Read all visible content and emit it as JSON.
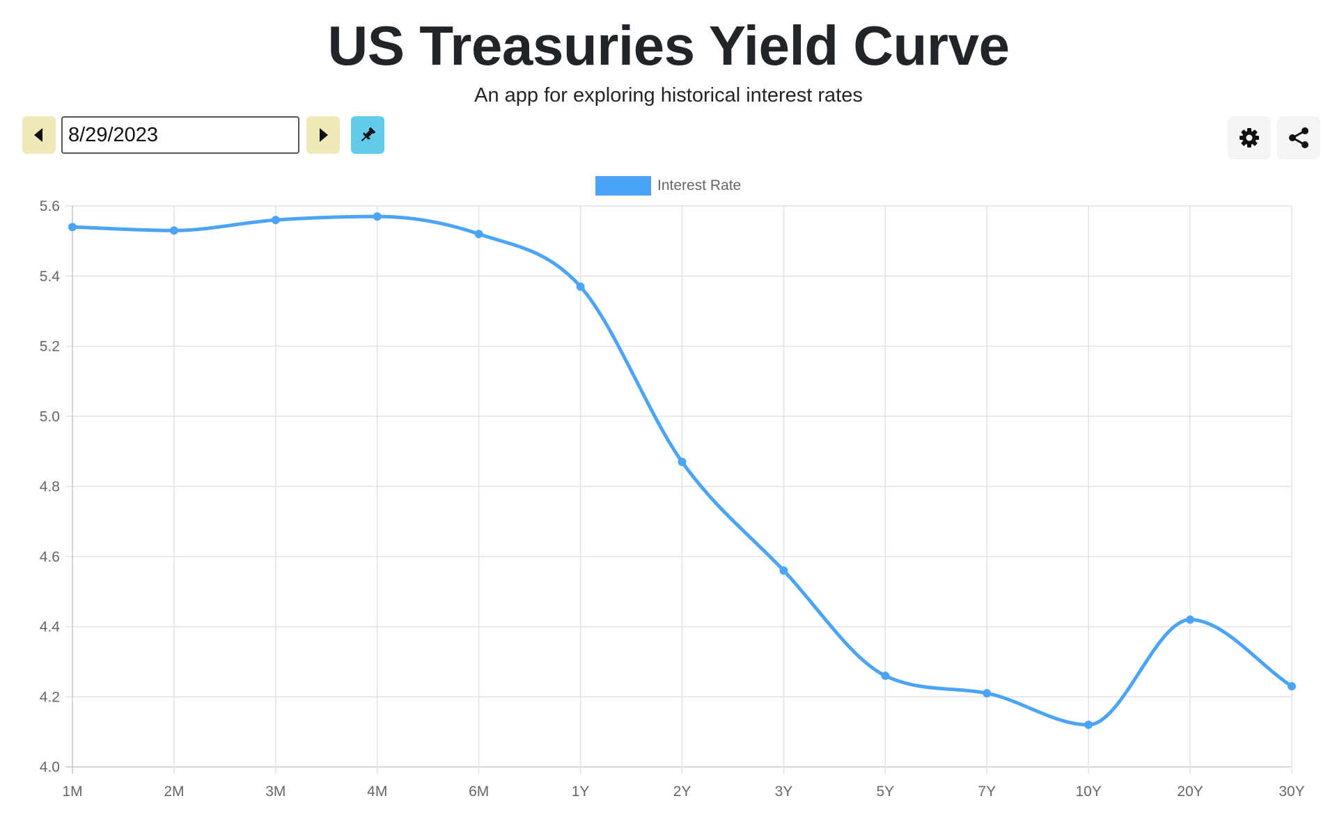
{
  "header": {
    "title": "US Treasuries Yield Curve",
    "subtitle": "An app for exploring historical interest rates"
  },
  "toolbar": {
    "date_value": "8/29/2023",
    "prev_icon": "caret-left-icon",
    "next_icon": "caret-right-icon",
    "pin_icon": "pin-icon",
    "settings_icon": "gear-icon",
    "share_icon": "share-icon"
  },
  "colors": {
    "series": "#4ba4f5",
    "nav_button": "#efeab8",
    "pin_button": "#63cbea"
  },
  "chart_data": {
    "type": "line",
    "categories": [
      "1M",
      "2M",
      "3M",
      "4M",
      "6M",
      "1Y",
      "2Y",
      "3Y",
      "5Y",
      "7Y",
      "10Y",
      "20Y",
      "30Y"
    ],
    "series": [
      {
        "name": "Interest Rate",
        "values": [
          5.54,
          5.53,
          5.56,
          5.57,
          5.52,
          5.37,
          4.87,
          4.56,
          4.26,
          4.21,
          4.12,
          4.42,
          4.23
        ]
      }
    ],
    "ylim": [
      4.0,
      5.6
    ],
    "yticks": [
      "4.0",
      "4.2",
      "4.4",
      "4.6",
      "4.8",
      "5.0",
      "5.2",
      "5.4",
      "5.6"
    ],
    "grid": true,
    "legend": "top-center",
    "curve": "smooth"
  }
}
